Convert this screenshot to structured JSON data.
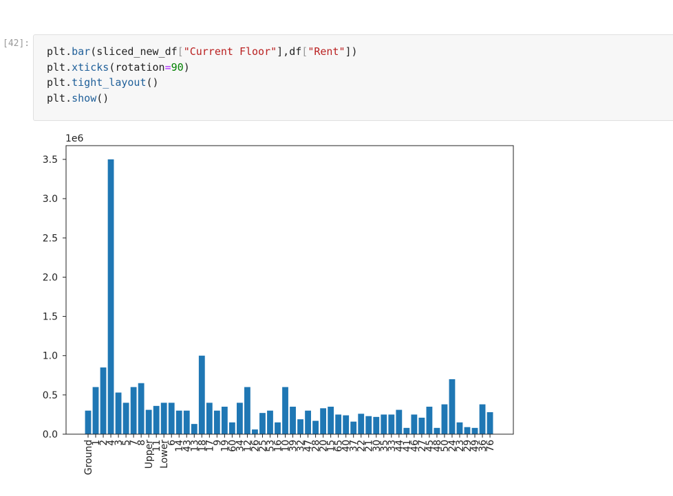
{
  "cell": {
    "prompt": "[42]:",
    "code": [
      [
        "plt.",
        "bar",
        "(sliced_new_df",
        "[",
        "\"Current Floor\"",
        "],df",
        "[",
        "\"Rent\"",
        "])"
      ],
      [
        "plt.",
        "xticks",
        "(rotation",
        "=",
        "90",
        ")"
      ],
      [
        "plt.",
        "tight_layout",
        "()"
      ],
      [
        "plt.",
        "show",
        "()"
      ]
    ]
  },
  "chart_data": {
    "type": "bar",
    "color": "#1f77b4",
    "offset_label": "1e6",
    "categories": [
      "Ground",
      "1",
      "2",
      "4",
      "3",
      "5",
      "7",
      "8",
      "Upper",
      "11",
      "Lower",
      "6",
      "14",
      "43",
      "13",
      "18",
      "17",
      "9",
      "19",
      "60",
      "34",
      "12",
      "26",
      "25",
      "53",
      "16",
      "10",
      "39",
      "32",
      "47",
      "28",
      "20",
      "15",
      "65",
      "40",
      "37",
      "22",
      "21",
      "30",
      "35",
      "33",
      "44",
      "41",
      "46",
      "27",
      "45",
      "48",
      "50",
      "24",
      "23",
      "29",
      "49",
      "36",
      "76"
    ],
    "values": [
      300000,
      600000,
      850000,
      3500000,
      530000,
      400000,
      600000,
      650000,
      310000,
      360000,
      400000,
      400000,
      300000,
      300000,
      130000,
      1000000,
      400000,
      300000,
      350000,
      150000,
      400000,
      600000,
      60000,
      270000,
      300000,
      150000,
      600000,
      350000,
      190000,
      300000,
      170000,
      330000,
      350000,
      250000,
      240000,
      160000,
      260000,
      230000,
      220000,
      250000,
      250000,
      310000,
      80000,
      250000,
      210000,
      350000,
      80000,
      380000,
      700000,
      150000,
      90000,
      80000,
      380000,
      280000
    ],
    "ylim": [
      0,
      3675000
    ],
    "yticks": [
      {
        "value": 0,
        "label": "0.0"
      },
      {
        "value": 500000,
        "label": "0.5"
      },
      {
        "value": 1000000,
        "label": "1.0"
      },
      {
        "value": 1500000,
        "label": "1.5"
      },
      {
        "value": 2000000,
        "label": "2.0"
      },
      {
        "value": 2500000,
        "label": "2.5"
      },
      {
        "value": 3000000,
        "label": "3.0"
      },
      {
        "value": 3500000,
        "label": "3.5"
      }
    ],
    "grid": false
  }
}
